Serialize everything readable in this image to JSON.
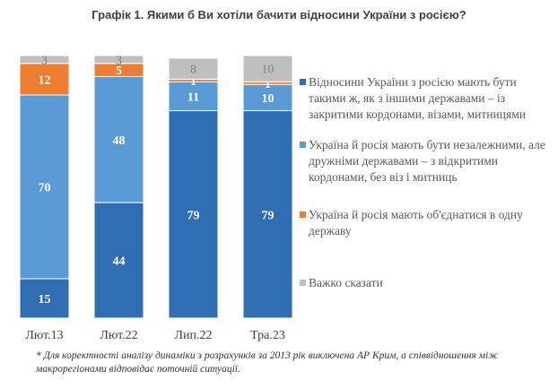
{
  "chart_data": {
    "type": "stacked-bar",
    "title": "Графік 1. Якими б Ви хотіли бачити відносини України з росією?",
    "categories": [
      "Лют.13",
      "Лют.22",
      "Лип.22",
      "Тра.23"
    ],
    "series": [
      {
        "name": "Відносини України з росією мають бути такими ж, як з іншими державами  – із закритими кордонами, візами, митницями",
        "color": "#2f6eb3",
        "values": [
          15,
          44,
          79,
          79
        ]
      },
      {
        "name": "Україна й росія мають бути незалежними, але дружніми державами  – з відкритими кордонами, без віз і митниць",
        "color": "#5b9bd5",
        "values": [
          70,
          48,
          11,
          10
        ]
      },
      {
        "name": "Україна й росія мають об'єднатися в одну державу",
        "color": "#ed7d31",
        "values": [
          12,
          5,
          1,
          1
        ]
      },
      {
        "name": "Важко сказати",
        "color": "#bfbfbf",
        "values": [
          3,
          3,
          8,
          10
        ]
      }
    ],
    "ylim": [
      0,
      100
    ],
    "grid": false,
    "legend": "right",
    "footnote": "* Для коректності аналізу динаміки з розрахунків за 2013 рік виключена АР Крим, а співвідношення між макрорегіонами відповідає поточній ситуації."
  }
}
